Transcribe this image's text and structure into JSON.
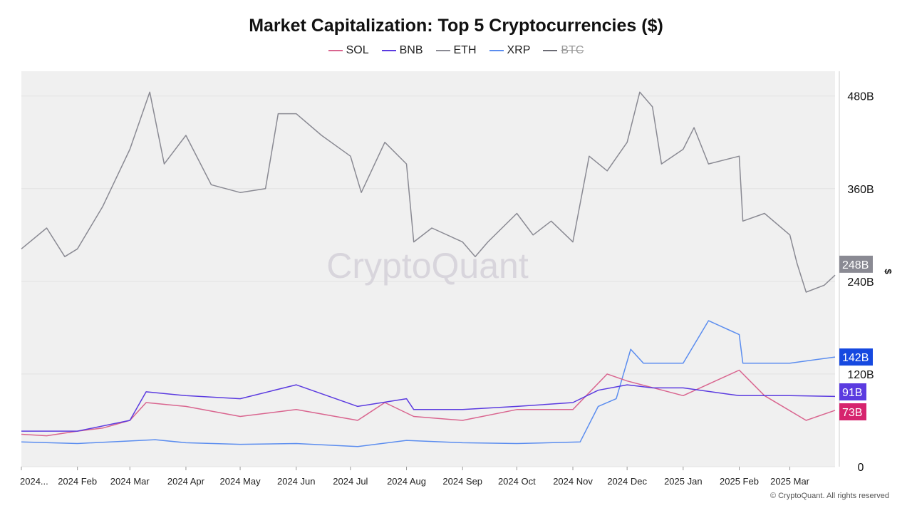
{
  "chart_data": {
    "type": "line",
    "title": "Market Capitalization: Top 5 Cryptocurrencies ($)",
    "yaxis_unit_label": "$",
    "ylim": [
      0,
      510
    ],
    "yticks": [
      0,
      120,
      240,
      360,
      480
    ],
    "ytick_labels": [
      "0",
      "120B",
      "240B",
      "360B",
      "480B"
    ],
    "xtick_labels": [
      "2024...",
      "2024 Feb",
      "2024 Mar",
      "2024 Apr",
      "2024 May",
      "2024 Jun",
      "2024 Jul",
      "2024 Aug",
      "2024 Sep",
      "2024 Oct",
      "2024 Nov",
      "2024 Dec",
      "2025 Jan",
      "2025 Feb",
      "2025 Mar"
    ],
    "xtick_dates": [
      "2024-01-01",
      "2024-02-01",
      "2024-03-01",
      "2024-04-01",
      "2024-05-01",
      "2024-06-01",
      "2024-07-01",
      "2024-08-01",
      "2024-09-01",
      "2024-10-01",
      "2024-11-01",
      "2024-12-01",
      "2025-01-01",
      "2025-02-01",
      "2025-03-01"
    ],
    "xlim": [
      "2024-01-01",
      "2025-03-26"
    ],
    "grid": true,
    "legend_position": "top",
    "watermark": "CryptoQuant",
    "series": [
      {
        "name": "SOL",
        "color": "#d9658f",
        "label_color": "#d6246e",
        "last_label": "73B",
        "visible": true,
        "dates": [
          "2024-01-01",
          "2024-01-15",
          "2024-02-01",
          "2024-02-15",
          "2024-03-01",
          "2024-03-10",
          "2024-04-01",
          "2024-05-01",
          "2024-06-01",
          "2024-07-05",
          "2024-07-20",
          "2024-08-05",
          "2024-09-01",
          "2024-10-01",
          "2024-11-01",
          "2024-11-20",
          "2024-12-01",
          "2025-01-01",
          "2025-02-01",
          "2025-02-15",
          "2025-03-10",
          "2025-03-26"
        ],
        "values": [
          42,
          40,
          46,
          50,
          60,
          83,
          78,
          65,
          74,
          60,
          83,
          65,
          60,
          74,
          74,
          120,
          111,
          92,
          125,
          92,
          60,
          73
        ]
      },
      {
        "name": "BNB",
        "color": "#5b3be0",
        "label_color": "#5b3be0",
        "last_label": "91B",
        "visible": true,
        "dates": [
          "2024-01-01",
          "2024-02-01",
          "2024-03-01",
          "2024-03-10",
          "2024-04-01",
          "2024-05-01",
          "2024-06-01",
          "2024-07-05",
          "2024-08-01",
          "2024-08-05",
          "2024-09-01",
          "2024-10-01",
          "2024-11-01",
          "2024-11-15",
          "2024-12-01",
          "2024-12-15",
          "2025-01-01",
          "2025-02-01",
          "2025-03-01",
          "2025-03-26"
        ],
        "values": [
          46,
          46,
          60,
          97,
          92,
          88,
          106,
          78,
          88,
          74,
          74,
          78,
          83,
          99,
          106,
          102,
          102,
          92,
          92,
          91
        ]
      },
      {
        "name": "ETH",
        "color": "#8a8a93",
        "label_color": "#8a8a93",
        "last_label": "248B",
        "visible": true,
        "dates": [
          "2024-01-01",
          "2024-01-15",
          "2024-01-25",
          "2024-02-01",
          "2024-02-15",
          "2024-03-01",
          "2024-03-12",
          "2024-03-20",
          "2024-04-01",
          "2024-04-15",
          "2024-05-01",
          "2024-05-15",
          "2024-05-22",
          "2024-06-01",
          "2024-06-15",
          "2024-07-01",
          "2024-07-07",
          "2024-07-20",
          "2024-08-01",
          "2024-08-05",
          "2024-08-15",
          "2024-09-01",
          "2024-09-08",
          "2024-09-15",
          "2024-10-01",
          "2024-10-10",
          "2024-10-20",
          "2024-11-01",
          "2024-11-10",
          "2024-11-20",
          "2024-12-01",
          "2024-12-08",
          "2024-12-15",
          "2024-12-20",
          "2025-01-01",
          "2025-01-07",
          "2025-01-15",
          "2025-02-01",
          "2025-02-03",
          "2025-02-15",
          "2025-03-01",
          "2025-03-05",
          "2025-03-10",
          "2025-03-20",
          "2025-03-26"
        ],
        "values": [
          282,
          309,
          272,
          282,
          337,
          411,
          485,
          392,
          429,
          365,
          355,
          360,
          457,
          457,
          429,
          402,
          355,
          420,
          392,
          291,
          309,
          291,
          272,
          291,
          328,
          300,
          318,
          291,
          402,
          383,
          420,
          485,
          466,
          392,
          411,
          439,
          392,
          402,
          318,
          328,
          300,
          263,
          226,
          235,
          248
        ]
      },
      {
        "name": "XRP",
        "color": "#5b8def",
        "label_color": "#1649e0",
        "last_label": "142B",
        "visible": true,
        "dates": [
          "2024-01-01",
          "2024-02-01",
          "2024-03-15",
          "2024-04-01",
          "2024-05-01",
          "2024-06-01",
          "2024-07-05",
          "2024-08-01",
          "2024-09-01",
          "2024-10-01",
          "2024-11-05",
          "2024-11-15",
          "2024-11-25",
          "2024-12-03",
          "2024-12-10",
          "2025-01-01",
          "2025-01-15",
          "2025-02-01",
          "2025-02-03",
          "2025-03-01",
          "2025-03-26"
        ],
        "values": [
          32,
          30,
          35,
          31,
          29,
          30,
          26,
          34,
          31,
          30,
          32,
          78,
          88,
          152,
          134,
          134,
          189,
          171,
          134,
          134,
          142
        ]
      },
      {
        "name": "BTC",
        "color": "#6b6b74",
        "visible": false
      }
    ]
  },
  "footer": "© CryptoQuant. All rights reserved"
}
